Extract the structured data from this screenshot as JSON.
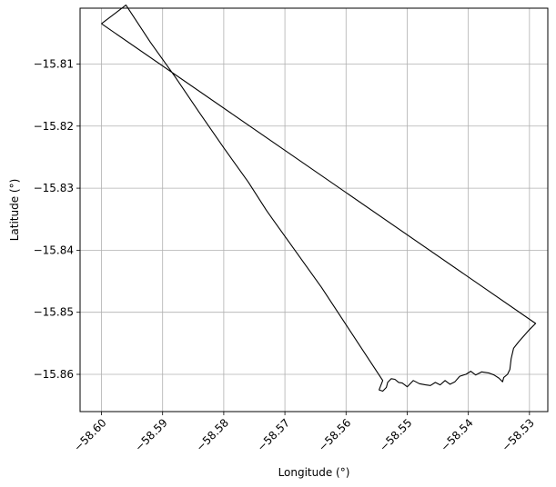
{
  "chart_data": {
    "type": "line",
    "title": "",
    "xlabel": "Longitude (°)",
    "ylabel": "Latitude (°)",
    "xlim": [
      -58.6035,
      -58.527
    ],
    "ylim": [
      -15.866,
      -15.801
    ],
    "grid": true,
    "xticks": [
      "−58.60",
      "−58.59",
      "−58.58",
      "−58.57",
      "−58.56",
      "−58.55",
      "−58.54",
      "−58.53"
    ],
    "xtick_values": [
      -58.6,
      -58.59,
      -58.58,
      -58.57,
      -58.56,
      -58.55,
      -58.54,
      -58.53
    ],
    "yticks": [
      "−15.81",
      "−15.82",
      "−15.83",
      "−15.84",
      "−15.85",
      "−15.86"
    ],
    "ytick_values": [
      -15.81,
      -15.82,
      -15.83,
      -15.84,
      -15.85,
      -15.86
    ],
    "series": [
      {
        "color": "#000000",
        "x": [
          -58.6,
          -58.529,
          -58.53,
          -58.5318,
          -58.5326,
          -58.533,
          -58.5332,
          -58.5336,
          -58.5342,
          -58.5344,
          -58.535,
          -58.5358,
          -58.5366,
          -58.5378,
          -58.5388,
          -58.5396,
          -58.5404,
          -58.5414,
          -58.5422,
          -58.543,
          -58.5438,
          -58.5446,
          -58.5454,
          -58.5462,
          -58.547,
          -58.548,
          -58.549,
          -58.55,
          -58.5508,
          -58.5514,
          -58.552,
          -58.5526,
          -58.5532,
          -58.5534,
          -58.554,
          -58.5546,
          -58.554,
          -58.557,
          -58.56,
          -58.564,
          -58.568,
          -58.572,
          -58.573,
          -58.576,
          -58.58,
          -58.584,
          -58.588,
          -58.592,
          -58.596,
          -58.6
        ],
        "y": [
          -15.8035,
          -15.8518,
          -15.8528,
          -15.8548,
          -15.8558,
          -15.8575,
          -15.8592,
          -15.86,
          -15.8605,
          -15.8612,
          -15.8606,
          -15.8601,
          -15.8598,
          -15.8596,
          -15.8601,
          -15.8595,
          -15.86,
          -15.8603,
          -15.8612,
          -15.8616,
          -15.861,
          -15.8617,
          -15.8613,
          -15.8618,
          -15.8617,
          -15.8615,
          -15.861,
          -15.862,
          -15.8614,
          -15.8613,
          -15.8608,
          -15.8607,
          -15.8613,
          -15.8621,
          -15.8627,
          -15.8625,
          -15.861,
          -15.8565,
          -15.852,
          -15.846,
          -15.8405,
          -15.835,
          -15.8336,
          -15.829,
          -15.8235,
          -15.8178,
          -15.812,
          -15.8065,
          -15.8005,
          -15.8035
        ]
      }
    ]
  }
}
